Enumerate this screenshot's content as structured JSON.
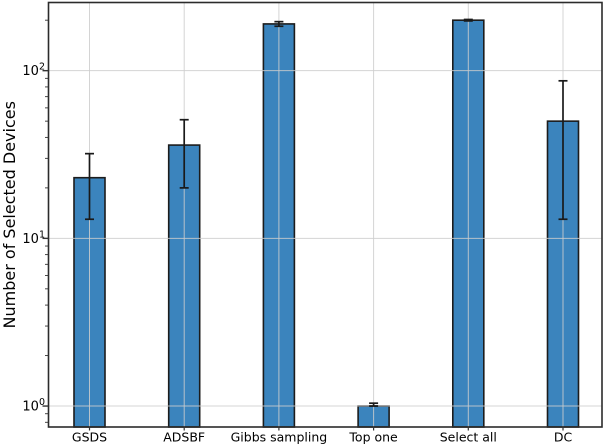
{
  "figure": {
    "kind": "matplotlib-style bar figure",
    "background_color": "#ffffff"
  },
  "chart_data": {
    "type": "bar",
    "title": "",
    "xlabel": "",
    "ylabel": "Number of Selected Devices",
    "yscale": "log",
    "ylim": [
      0.75,
      255
    ],
    "grid": true,
    "legend_position": "none",
    "categories": [
      "GSDS",
      "ADSBF",
      "Gibbs sampling",
      "Top one",
      "Select all",
      "DC"
    ],
    "values": [
      23,
      36,
      190,
      1,
      200,
      50
    ],
    "error_low": [
      13,
      20,
      184,
      1,
      198,
      13
    ],
    "error_high": [
      32,
      51,
      196,
      1.04,
      202,
      87
    ],
    "y_major_ticks": [
      {
        "v": 1,
        "base": "10",
        "exp": "0"
      },
      {
        "v": 10,
        "base": "10",
        "exp": "1"
      },
      {
        "v": 100,
        "base": "10",
        "exp": "2"
      }
    ],
    "colors": {
      "bar_fill": "#3b84bd",
      "bar_edge": "#1c1c1c",
      "error_bar": "#1a1a1a",
      "grid_line": "#cdcdcd",
      "spine": "#2b2b2b",
      "tick": "#333333",
      "text": "#000000"
    }
  }
}
